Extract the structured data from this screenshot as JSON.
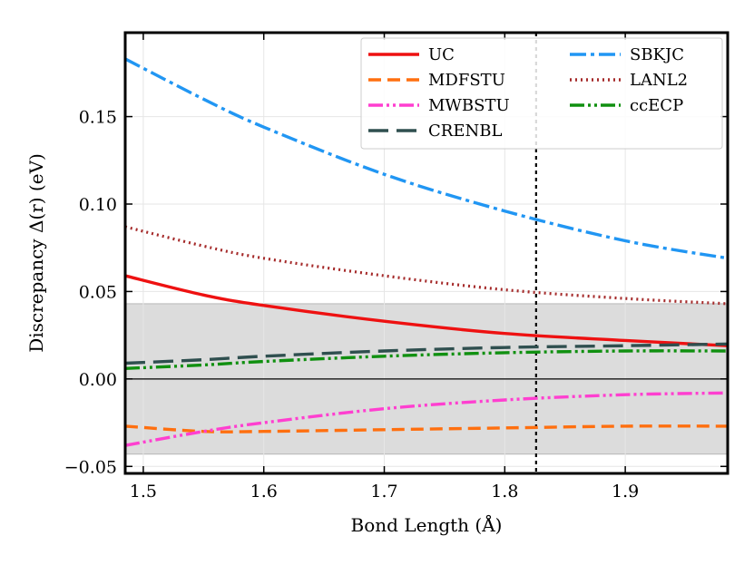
{
  "chart_data": {
    "type": "line",
    "title": "",
    "xlabel": "Bond Length (Å)",
    "ylabel": "Discrepancy Δ(r) (eV)",
    "xlim": [
      1.485,
      1.985
    ],
    "ylim": [
      -0.054,
      0.198
    ],
    "xticks": [
      1.5,
      1.6,
      1.7,
      1.8,
      1.9
    ],
    "xtick_labels": [
      "1.5",
      "1.6",
      "1.7",
      "1.8",
      "1.9"
    ],
    "yticks": [
      -0.05,
      0.0,
      0.05,
      0.1,
      0.15
    ],
    "ytick_labels": [
      "−0.05",
      "0.00",
      "0.05",
      "0.10",
      "0.15"
    ],
    "grid": true,
    "shaded_band": [
      -0.043,
      0.043
    ],
    "band_color": "#dcdcdc",
    "zero_line": 0.0,
    "vertical_marker": 1.826,
    "legend_position": "top-right",
    "series": [
      {
        "name": "UC",
        "color": "#ee1111",
        "dash": "solid",
        "x": [
          1.485,
          1.55,
          1.6,
          1.7,
          1.8,
          1.9,
          1.985
        ],
        "y": [
          0.059,
          0.048,
          0.042,
          0.033,
          0.026,
          0.022,
          0.019
        ]
      },
      {
        "name": "MDFSTU",
        "color": "#ff6f0f",
        "dash": "dash",
        "x": [
          1.485,
          1.55,
          1.6,
          1.7,
          1.8,
          1.9,
          1.985
        ],
        "y": [
          -0.027,
          -0.03,
          -0.03,
          -0.029,
          -0.028,
          -0.027,
          -0.027
        ]
      },
      {
        "name": "MWBSTU",
        "color": "#ff3fd0",
        "dash": "dashdotdot",
        "x": [
          1.485,
          1.55,
          1.6,
          1.7,
          1.8,
          1.9,
          1.985
        ],
        "y": [
          -0.038,
          -0.03,
          -0.025,
          -0.017,
          -0.012,
          -0.009,
          -0.008
        ]
      },
      {
        "name": "CRENBL",
        "color": "#2f4f4f",
        "dash": "longdash",
        "x": [
          1.485,
          1.55,
          1.6,
          1.7,
          1.8,
          1.9,
          1.985
        ],
        "y": [
          0.009,
          0.011,
          0.013,
          0.016,
          0.018,
          0.019,
          0.02
        ]
      },
      {
        "name": "SBKJC",
        "color": "#2196f3",
        "dash": "dashdot",
        "x": [
          1.485,
          1.55,
          1.6,
          1.7,
          1.8,
          1.9,
          1.985
        ],
        "y": [
          0.183,
          0.16,
          0.144,
          0.117,
          0.096,
          0.079,
          0.069
        ]
      },
      {
        "name": "LANL2",
        "color": "#a52a2a",
        "dash": "dot",
        "x": [
          1.485,
          1.55,
          1.6,
          1.7,
          1.8,
          1.9,
          1.985
        ],
        "y": [
          0.087,
          0.076,
          0.069,
          0.059,
          0.051,
          0.046,
          0.043
        ]
      },
      {
        "name": "ccECP",
        "color": "#109010",
        "dash": "dashdotdot",
        "x": [
          1.485,
          1.55,
          1.6,
          1.7,
          1.8,
          1.9,
          1.985
        ],
        "y": [
          0.006,
          0.008,
          0.01,
          0.013,
          0.015,
          0.016,
          0.016
        ]
      }
    ]
  }
}
